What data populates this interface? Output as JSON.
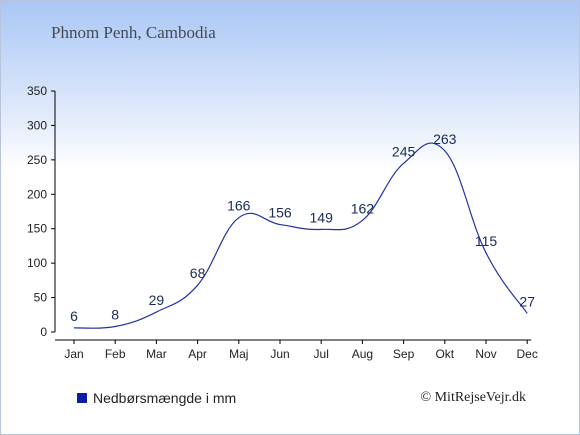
{
  "title": "Phnom Penh, Cambodia",
  "legend_label": "Nedbørsmængde i mm",
  "credit": "© MitRejseVejr.dk",
  "colors": {
    "line": "#2233a0",
    "axis": "#000000",
    "label": "#1a2a5a",
    "legend_swatch": "#0a1ea8"
  },
  "chart_data": {
    "type": "line",
    "categories": [
      "Jan",
      "Feb",
      "Mar",
      "Apr",
      "Maj",
      "Jun",
      "Jul",
      "Aug",
      "Sep",
      "Okt",
      "Nov",
      "Dec"
    ],
    "series": [
      {
        "name": "Nedbørsmængde i mm",
        "values": [
          6,
          8,
          29,
          68,
          166,
          156,
          149,
          162,
          245,
          263,
          115,
          27
        ]
      }
    ],
    "ylim": [
      0,
      350
    ],
    "yticks": [
      0,
      50,
      100,
      150,
      200,
      250,
      300,
      350
    ],
    "grid": false,
    "legend_position": "bottom-left"
  }
}
